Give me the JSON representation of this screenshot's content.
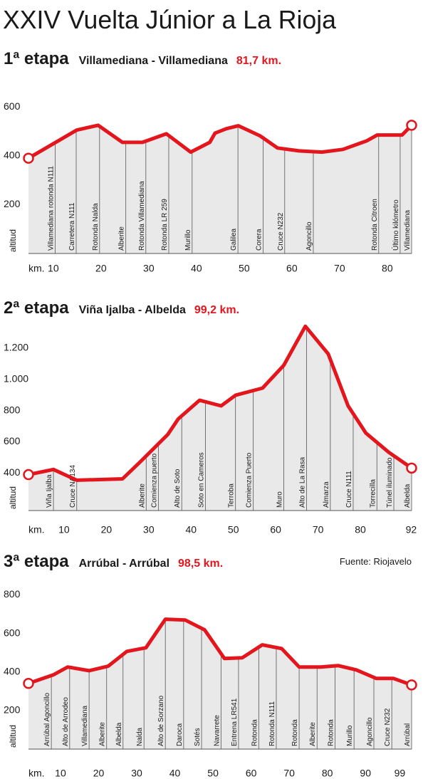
{
  "title": "XXIV Vuelta Júnior a La Rioja",
  "source": "Fuente: Riojavelo",
  "chart_data": [
    {
      "type": "line",
      "stage": "1ª etapa",
      "route": "Villamediana - Villamediana",
      "distance": "81,7 km.",
      "xlabel": "km.",
      "ylabel": "altitud",
      "color": "#e3161d",
      "fill": "#e9e9e9",
      "xlim": [
        4.8,
        85.1
      ],
      "xticks": [
        10,
        20,
        30,
        40,
        50,
        60,
        70,
        80
      ],
      "ylim": [
        0,
        650
      ],
      "yticks": [
        200,
        400,
        600
      ],
      "x": [
        4.8,
        14.9,
        19.4,
        24.5,
        28.7,
        33.7,
        38.8,
        42.8,
        43.9,
        46.3,
        48.8,
        53.3,
        57.0,
        61.5,
        66.3,
        70.7,
        75.7,
        77.9,
        83.1,
        85.1
      ],
      "values": [
        390,
        505,
        525,
        455,
        455,
        490,
        415,
        455,
        493,
        511,
        523,
        482,
        432,
        420,
        415,
        426,
        461,
        485,
        485,
        525
      ],
      "waypoints": [
        {
          "name": "Villamediana rotonda N111",
          "km": 10.4
        },
        {
          "name": "Carretera N111",
          "km": 14.8
        },
        {
          "name": "Rotonda Nalda",
          "km": 19.7
        },
        {
          "name": "Alberite",
          "km": 25.2
        },
        {
          "name": "Rotonda Villamediana",
          "km": 29.4
        },
        {
          "name": "Rotonda LR 259",
          "km": 34.2
        },
        {
          "name": "Murillo",
          "km": 39.1
        },
        {
          "name": "Galilea",
          "km": 48.7
        },
        {
          "name": "Corera",
          "km": 54.0
        },
        {
          "name": "Cruce N232",
          "km": 58.5
        },
        {
          "name": "Agoncillo",
          "km": 64.5
        },
        {
          "name": "Rotonda Citroen",
          "km": 78.2
        },
        {
          "name": "Último kilómetro",
          "km": 82.7
        },
        {
          "name": "Villamediana",
          "km": 85.1
        }
      ]
    },
    {
      "type": "line",
      "stage": "2ª etapa",
      "route": "Viña Ijalba - Albelda",
      "distance": "99,2 km.",
      "xlabel": "km.",
      "ylabel": "altitud",
      "color": "#e3161d",
      "fill": "#e9e9e9",
      "xlim": [
        1.6,
        92.1
      ],
      "xticks": [
        10,
        20,
        30,
        40,
        50,
        60,
        70,
        80,
        92
      ],
      "ylim": [
        160,
        1400
      ],
      "yticks": [
        400,
        600,
        800,
        {
          "value": 1000,
          "label": "1.000"
        },
        {
          "value": 1200,
          "label": "1.200"
        }
      ],
      "x": [
        1.6,
        7.5,
        13.0,
        23.8,
        27.7,
        34.5,
        37.0,
        42.0,
        47.1,
        50.5,
        56.9,
        61.9,
        67.0,
        72.4,
        77.1,
        81.3,
        86.7,
        92.1
      ],
      "values": [
        390,
        423,
        354,
        363,
        464,
        647,
        747,
        866,
        830,
        898,
        944,
        1090,
        1340,
        1163,
        830,
        656,
        533,
        432
      ],
      "waypoints": [
        {
          "name": "Viña Ijalba",
          "km": 7.5
        },
        {
          "name": "Cruce NA134",
          "km": 13.0
        },
        {
          "name": "Alberite",
          "km": 29.4
        },
        {
          "name": "Comienza puerto",
          "km": 32.3
        },
        {
          "name": "Alto de Soto",
          "km": 37.8
        },
        {
          "name": "Soto en Cameros",
          "km": 43.4
        },
        {
          "name": "Terroba",
          "km": 50.5
        },
        {
          "name": "Comienza Puerto",
          "km": 54.7
        },
        {
          "name": "Muro",
          "km": 61.9
        },
        {
          "name": "Alto de La Rasa",
          "km": 67.3
        },
        {
          "name": "Almarza",
          "km": 72.9
        },
        {
          "name": "Cruce N111",
          "km": 78.3
        },
        {
          "name": "Torrecilla",
          "km": 83.9
        },
        {
          "name": "Túnel iluminado",
          "km": 87.9
        },
        {
          "name": "Albelda",
          "km": 92.1
        }
      ]
    },
    {
      "type": "line",
      "stage": "3ª etapa",
      "route": "Arrúbal - Arrúbal",
      "distance": "98,5 km.",
      "xlabel": "km.",
      "ylabel": "altitud",
      "color": "#e3161d",
      "fill": "#e9e9e9",
      "xlim": [
        1.6,
        102.1
      ],
      "xticks": [
        10,
        20,
        30,
        40,
        50,
        60,
        70,
        80,
        90,
        99
      ],
      "ylim": [
        0,
        850
      ],
      "yticks": [
        200,
        400,
        600,
        800
      ],
      "x": [
        1.6,
        8.1,
        11.9,
        17.5,
        22.5,
        27.4,
        32.4,
        37.5,
        42.7,
        47.8,
        53.0,
        57.7,
        62.9,
        68.0,
        72.6,
        78.2,
        82.9,
        87.6,
        92.8,
        97.3,
        102.1
      ],
      "values": [
        341,
        385,
        426,
        407,
        430,
        507,
        526,
        674,
        670,
        619,
        470,
        474,
        541,
        522,
        426,
        426,
        433,
        411,
        367,
        367,
        333
      ],
      "waypoints": [
        {
          "name": "Arrúbal Agoncillo",
          "km": 7.6
        },
        {
          "name": "Alto de Arrodeo",
          "km": 12.4
        },
        {
          "name": "Villamediana",
          "km": 17.5
        },
        {
          "name": "Alberite",
          "km": 22.1
        },
        {
          "name": "Albelda",
          "km": 26.4
        },
        {
          "name": "Nalda",
          "km": 31.9
        },
        {
          "name": "Alto de Sorzano",
          "km": 37.5
        },
        {
          "name": "Daroca",
          "km": 42.3
        },
        {
          "name": "Sotés",
          "km": 47.0
        },
        {
          "name": "Navarrete",
          "km": 52.1
        },
        {
          "name": "Entrena LR541",
          "km": 56.7
        },
        {
          "name": "Rotonda",
          "km": 62.0
        },
        {
          "name": "Rotonda N111",
          "km": 66.6
        },
        {
          "name": "Rotonda",
          "km": 72.6
        },
        {
          "name": "Alberite",
          "km": 77.3
        },
        {
          "name": "Rotonda",
          "km": 82.0
        },
        {
          "name": "Murillo",
          "km": 87.0
        },
        {
          "name": "Agoncillo",
          "km": 92.2
        },
        {
          "name": "Cruce N232",
          "km": 96.9
        },
        {
          "name": "Arrúbal",
          "km": 102.1
        }
      ]
    }
  ]
}
